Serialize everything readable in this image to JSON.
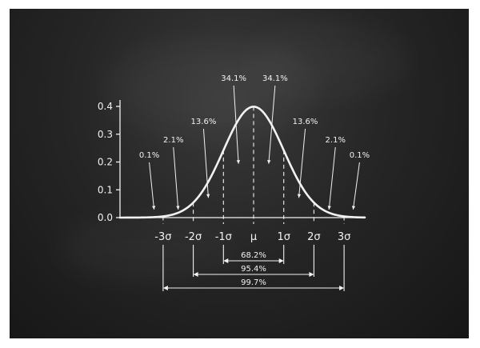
{
  "chart_data": {
    "type": "line",
    "distribution": "normal",
    "mean": 0,
    "sd": 1,
    "ylim": [
      0,
      0.4
    ],
    "y_ticks": [
      {
        "value": 0.0,
        "label": "0.0"
      },
      {
        "value": 0.1,
        "label": "0.1"
      },
      {
        "value": 0.2,
        "label": "0.2"
      },
      {
        "value": 0.3,
        "label": "0.3"
      },
      {
        "value": 0.4,
        "label": "0.4"
      }
    ],
    "x_ticks": [
      {
        "value": -3,
        "label": "-3σ"
      },
      {
        "value": -2,
        "label": "-2σ"
      },
      {
        "value": -1,
        "label": "-1σ"
      },
      {
        "value": 0,
        "label": "μ"
      },
      {
        "value": 1,
        "label": "1σ"
      },
      {
        "value": 2,
        "label": "2σ"
      },
      {
        "value": 3,
        "label": "3σ"
      }
    ],
    "region_labels": [
      {
        "label": "0.1%",
        "x": -3.3
      },
      {
        "label": "2.1%",
        "x": -2.5
      },
      {
        "label": "13.6%",
        "x": -1.5
      },
      {
        "label": "34.1%",
        "x": -0.5
      },
      {
        "label": "34.1%",
        "x": 0.5
      },
      {
        "label": "13.6%",
        "x": 1.5
      },
      {
        "label": "2.1%",
        "x": 2.5
      },
      {
        "label": "0.1%",
        "x": 3.3
      }
    ],
    "ranges": [
      {
        "label": "68.2%",
        "from": -1,
        "to": 1
      },
      {
        "label": "95.4%",
        "from": -2,
        "to": 2
      },
      {
        "label": "99.7%",
        "from": -3,
        "to": 3
      }
    ],
    "colors": {
      "chalk": "#f2f2f2",
      "board": "#262626"
    }
  }
}
